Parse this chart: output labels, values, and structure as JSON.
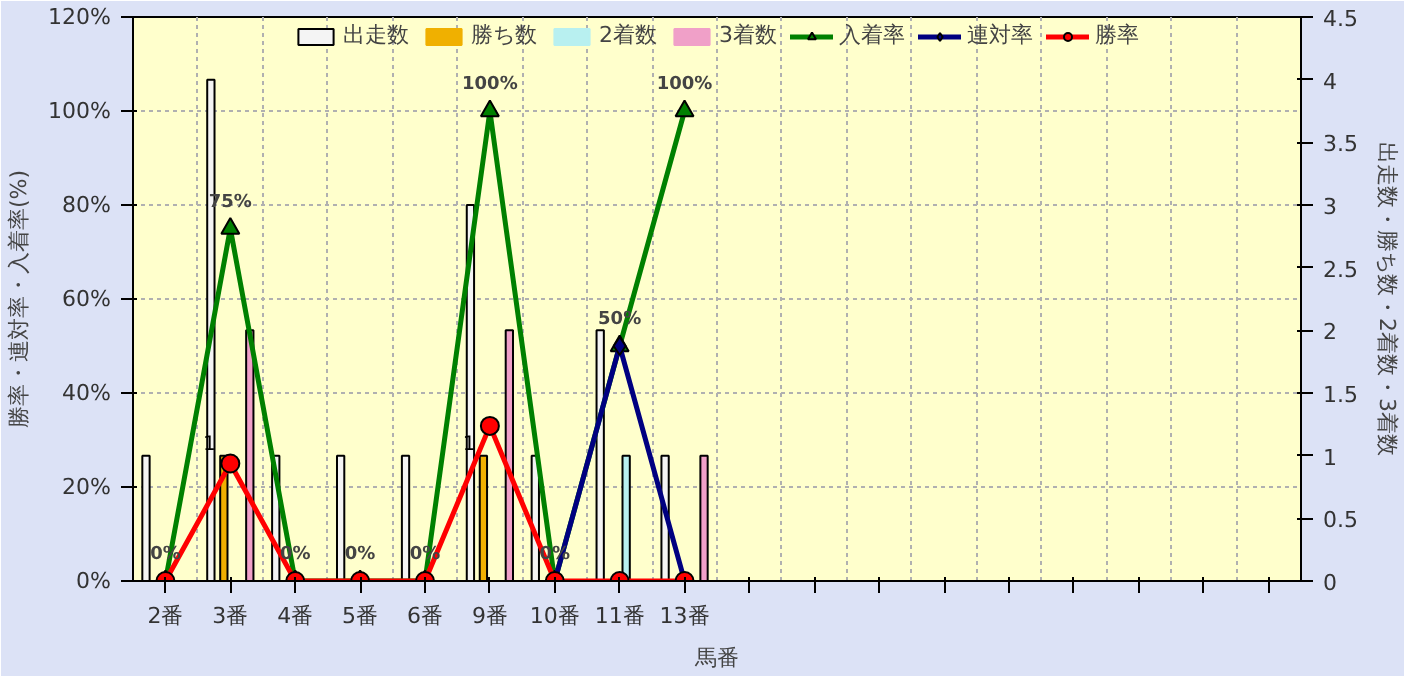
{
  "chart_data": {
    "type": "bar",
    "xlabel": "馬番",
    "ylabel": "勝率・連対率・入着率(%)",
    "y2label": "出走数・勝ち数・2着数・3着数",
    "categories": [
      "2番",
      "3番",
      "4番",
      "5番",
      "6番",
      "9番",
      "10番",
      "11番",
      "13番",
      null,
      null,
      null,
      null,
      null,
      null,
      null,
      null,
      null
    ],
    "series": [
      {
        "name": "出走数",
        "axis": "y2",
        "color": "#f4f4f4",
        "values": [
          1,
          4,
          1,
          1,
          1,
          3,
          1,
          2,
          1,
          null,
          null,
          null,
          null,
          null,
          null,
          null,
          null,
          null
        ]
      },
      {
        "name": "勝ち数",
        "axis": "y2",
        "color": "#f0b000",
        "values": [
          0,
          1,
          0,
          0,
          0,
          1,
          0,
          0,
          0,
          null,
          null,
          null,
          null,
          null,
          null,
          null,
          null,
          null
        ],
        "value_labels": [
          null,
          "1",
          null,
          null,
          null,
          "1",
          null,
          null,
          null,
          null,
          null,
          null,
          null,
          null,
          null,
          null,
          null,
          null
        ]
      },
      {
        "name": "2着数",
        "axis": "y2",
        "color": "#b8f0f0",
        "values": [
          0,
          0,
          0,
          0,
          0,
          0,
          0,
          1,
          0,
          null,
          null,
          null,
          null,
          null,
          null,
          null,
          null,
          null
        ]
      },
      {
        "name": "3着数",
        "axis": "y2",
        "color": "#f0a0c8",
        "values": [
          0,
          2,
          0,
          0,
          0,
          2,
          0,
          0,
          1,
          null,
          null,
          null,
          null,
          null,
          null,
          null,
          null,
          null
        ]
      },
      {
        "name": "入着率",
        "type": "line",
        "axis": "y",
        "color": "#008000",
        "marker": "triangle",
        "values": [
          0,
          75,
          0,
          0,
          0,
          100,
          0,
          50,
          100,
          null,
          null,
          null,
          null,
          null,
          null,
          null,
          null,
          null
        ],
        "value_labels": [
          "0%",
          "75%",
          "0%",
          "0%",
          "0%",
          "100%",
          "0%",
          "50%",
          "100%",
          null,
          null,
          null,
          null,
          null,
          null,
          null,
          null,
          null
        ]
      },
      {
        "name": "連対率",
        "type": "line",
        "axis": "y",
        "color": "#000080",
        "marker": "diamond",
        "values": [
          null,
          null,
          null,
          null,
          null,
          null,
          0,
          50,
          0,
          null,
          null,
          null,
          null,
          null,
          null,
          null,
          null,
          null
        ]
      },
      {
        "name": "勝率",
        "type": "line",
        "axis": "y",
        "color": "#ff0000",
        "marker": "circle",
        "values": [
          0,
          25,
          0,
          0,
          0,
          33,
          0,
          0,
          0,
          null,
          null,
          null,
          null,
          null,
          null,
          null,
          null,
          null
        ]
      }
    ],
    "ylim": [
      0,
      120
    ],
    "yticks": [
      {
        "value": 0,
        "label": "0%"
      },
      {
        "value": 20,
        "label": "20%"
      },
      {
        "value": 40,
        "label": "40%"
      },
      {
        "value": 60,
        "label": "60%"
      },
      {
        "value": 80,
        "label": "80%"
      },
      {
        "value": 100,
        "label": "100%"
      },
      {
        "value": 120,
        "label": "120%"
      }
    ],
    "y2lim": [
      0,
      4.5
    ],
    "y2ticks": [
      0,
      0.5,
      1,
      1.5,
      2,
      2.5,
      3,
      3.5,
      4,
      4.5
    ],
    "grid": true,
    "legend": "top"
  }
}
